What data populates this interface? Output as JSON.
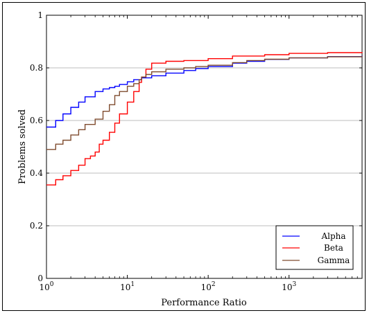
{
  "chart_data": {
    "type": "line",
    "xlabel": "Performance Ratio",
    "ylabel": "Problems solved",
    "xscale": "log",
    "xlim": [
      1,
      8000
    ],
    "ylim": [
      0,
      1
    ],
    "grid": "horizontal",
    "legend_position": "bottom-right",
    "y_ticks": [
      {
        "value": 0,
        "label": "0"
      },
      {
        "value": 0.2,
        "label": "0.2"
      },
      {
        "value": 0.4,
        "label": "0.4"
      },
      {
        "value": 0.6,
        "label": "0.6"
      },
      {
        "value": 0.8,
        "label": "0.8"
      },
      {
        "value": 1,
        "label": "1"
      }
    ],
    "x_ticks": [
      {
        "value": 1,
        "base": "10",
        "exp": "0"
      },
      {
        "value": 10,
        "base": "10",
        "exp": "1"
      },
      {
        "value": 100,
        "base": "10",
        "exp": "2"
      },
      {
        "value": 1000,
        "base": "10",
        "exp": "3"
      }
    ],
    "series": [
      {
        "name": "Alpha",
        "color": "#0000ff",
        "x": [
          1,
          1.3,
          1.6,
          2,
          2.5,
          3,
          4,
          5,
          6,
          7,
          8,
          10,
          12,
          15,
          20,
          30,
          50,
          70,
          100,
          200,
          300,
          500,
          1000,
          3000,
          8000
        ],
        "y": [
          0.575,
          0.6,
          0.625,
          0.65,
          0.67,
          0.69,
          0.71,
          0.72,
          0.725,
          0.73,
          0.737,
          0.747,
          0.755,
          0.762,
          0.77,
          0.78,
          0.79,
          0.797,
          0.805,
          0.818,
          0.825,
          0.832,
          0.838,
          0.843,
          0.846
        ]
      },
      {
        "name": "Beta",
        "color": "#ff0000",
        "x": [
          1,
          1.3,
          1.6,
          2,
          2.5,
          3,
          3.5,
          4,
          4.5,
          5,
          6,
          7,
          8,
          10,
          12,
          14,
          15,
          17,
          20,
          30,
          50,
          100,
          200,
          500,
          1000,
          3000,
          8000
        ],
        "y": [
          0.355,
          0.375,
          0.39,
          0.41,
          0.43,
          0.455,
          0.465,
          0.48,
          0.51,
          0.525,
          0.555,
          0.59,
          0.625,
          0.67,
          0.71,
          0.745,
          0.765,
          0.795,
          0.818,
          0.825,
          0.828,
          0.835,
          0.845,
          0.85,
          0.855,
          0.858,
          0.86
        ]
      },
      {
        "name": "Gamma",
        "color": "#7f4b2e",
        "x": [
          1,
          1.3,
          1.6,
          2,
          2.5,
          3,
          4,
          5,
          6,
          7,
          8,
          10,
          12,
          14,
          15,
          17,
          20,
          30,
          50,
          70,
          100,
          200,
          300,
          500,
          1000,
          3000,
          8000
        ],
        "y": [
          0.49,
          0.51,
          0.525,
          0.545,
          0.565,
          0.585,
          0.605,
          0.635,
          0.66,
          0.695,
          0.71,
          0.73,
          0.74,
          0.755,
          0.765,
          0.775,
          0.785,
          0.795,
          0.8,
          0.805,
          0.81,
          0.82,
          0.828,
          0.833,
          0.838,
          0.842,
          0.845
        ]
      }
    ]
  }
}
